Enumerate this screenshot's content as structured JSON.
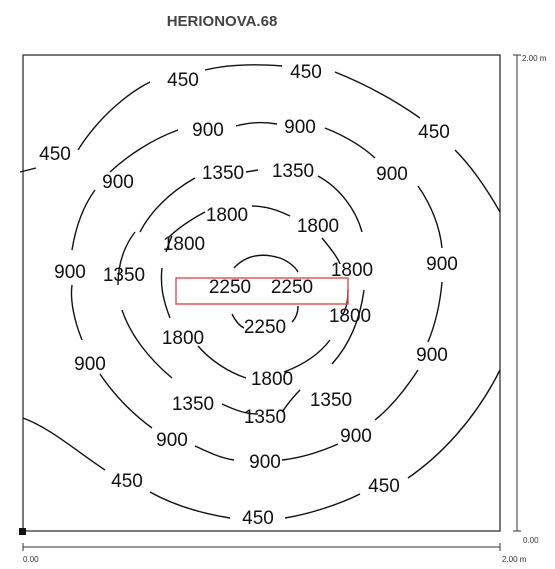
{
  "title": "HERIONOVA.68",
  "axis": {
    "x_start": "0.00",
    "x_end": "2.00 m",
    "y_top": "2.00 m",
    "y_bottom": "0.00"
  },
  "contour_levels": [
    "450",
    "900",
    "1350",
    "1800",
    "2250"
  ],
  "labels": {
    "l450": [
      "450",
      "450",
      "450",
      "450",
      "450",
      "450",
      "450"
    ],
    "l900": [
      "900",
      "900",
      "900",
      "900",
      "900",
      "900",
      "900",
      "900",
      "900",
      "900",
      "900"
    ],
    "l1350": [
      "1350",
      "1350",
      "1350",
      "1350",
      "1350",
      "1350"
    ],
    "l1800": [
      "1800",
      "1800",
      "1800",
      "1800",
      "1800",
      "1800",
      "1800"
    ],
    "l2250": [
      "2250",
      "2250",
      "2250"
    ]
  },
  "colors": {
    "line": "#111111",
    "highlight": "#d9534f",
    "title": "#444444"
  }
}
